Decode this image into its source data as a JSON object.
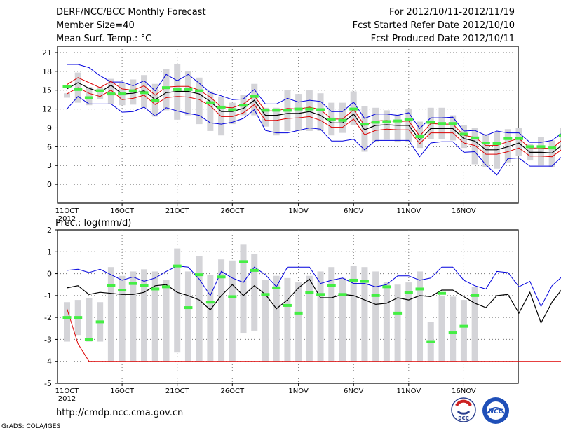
{
  "header": {
    "title": "DERF/NCC/BCC Monthly Forecast",
    "member": "Member Size=40",
    "variable": "Mean Surf. Temp.: °C",
    "period": "For 2012/10/11-2012/11/19",
    "refer": "Fcst Started Refer Date 2012/10/10",
    "produced": "Fcst Produced Date 2012/10/11"
  },
  "footer": {
    "url": "http://cmdp.ncc.cma.gov.cn",
    "grads": "GrADS: COLA/IGES"
  },
  "logos": {
    "bcc": "BCC",
    "ncc": "NCC"
  },
  "colors": {
    "ensemble": "#000000",
    "bounds_outer": "#0000dd",
    "bounds_inner": "#dd0000",
    "observed": "#44ee44",
    "spread": "#d4d4d8"
  },
  "chart_data": [
    {
      "type": "line",
      "title": "Mean Surf. Temp.: °C",
      "xlabel": "",
      "ylabel": "°C",
      "ylim": [
        -3,
        22
      ],
      "yticks": [
        0,
        3,
        6,
        9,
        12,
        15,
        18,
        21
      ],
      "x_tick_labels": [
        "11OCT",
        "16OCT",
        "21OCT",
        "26OCT",
        "1NOV",
        "6NOV",
        "11NOV",
        "16NOV"
      ],
      "x_tick_days": [
        1,
        6,
        11,
        16,
        22,
        27,
        32,
        37
      ],
      "year_label": "2012",
      "grid": true,
      "series": [
        {
          "name": "ensemble mean",
          "values": [
            15.2,
            16.2,
            15.3,
            14.7,
            15.8,
            14.4,
            14.5,
            14.9,
            13.5,
            14.6,
            14.8,
            14.8,
            14.4,
            13.2,
            11.6,
            11.6,
            12.1,
            13.4,
            11.0,
            11.0,
            11.3,
            11.3,
            11.6,
            11.0,
            9.8,
            9.8,
            11.2,
            8.7,
            9.4,
            9.5,
            9.4,
            9.4,
            7.1,
            8.9,
            8.9,
            8.9,
            7.3,
            6.9,
            5.5,
            5.5,
            6.0,
            6.6,
            5.1,
            5.1,
            5.0,
            6.4
          ]
        },
        {
          "name": "upper bound",
          "values": [
            19.1,
            19.1,
            18.6,
            17.3,
            16.3,
            16.3,
            15.7,
            16.5,
            14.9,
            17.5,
            16.5,
            17.5,
            16.1,
            14.6,
            14.1,
            13.5,
            13.6,
            15.1,
            12.8,
            12.8,
            13.7,
            13.1,
            13.4,
            13.2,
            11.6,
            11.6,
            13.1,
            10.5,
            11.2,
            11.2,
            11.0,
            11.4,
            8.9,
            10.6,
            10.6,
            10.7,
            8.5,
            8.6,
            7.8,
            8.5,
            8.2,
            8.2,
            6.7,
            6.7,
            7.0,
            8.3
          ]
        },
        {
          "name": "lower bound",
          "values": [
            12.0,
            14.0,
            12.8,
            12.8,
            12.8,
            11.5,
            11.6,
            12.3,
            10.9,
            12.2,
            11.7,
            11.3,
            11.0,
            9.8,
            9.6,
            9.9,
            10.5,
            11.9,
            8.6,
            8.2,
            8.2,
            8.6,
            9.0,
            8.8,
            6.9,
            6.9,
            7.2,
            5.5,
            7.0,
            7.0,
            7.0,
            7.0,
            4.4,
            6.6,
            6.8,
            6.8,
            5.1,
            5.2,
            3.1,
            1.5,
            4.1,
            4.2,
            2.9,
            2.9,
            2.9,
            4.6
          ]
        },
        {
          "name": "inner upper",
          "values": [
            15.9,
            17.0,
            16.2,
            15.4,
            16.4,
            15.2,
            15.0,
            15.7,
            14.2,
            15.5,
            15.6,
            15.6,
            15.0,
            13.9,
            12.3,
            12.2,
            12.8,
            14.1,
            11.7,
            11.7,
            12.1,
            12.0,
            12.3,
            11.9,
            10.4,
            10.4,
            11.9,
            9.4,
            10.1,
            10.2,
            10.0,
            10.1,
            7.7,
            9.7,
            9.6,
            9.6,
            7.8,
            7.5,
            6.2,
            6.2,
            6.8,
            7.3,
            5.8,
            5.8,
            5.7,
            7.2
          ]
        },
        {
          "name": "inner lower",
          "values": [
            14.4,
            15.4,
            14.5,
            14.0,
            15.0,
            13.5,
            13.7,
            14.2,
            12.7,
            13.8,
            14.0,
            13.9,
            13.5,
            12.5,
            10.8,
            10.8,
            11.4,
            12.7,
            10.2,
            10.2,
            10.5,
            10.6,
            10.8,
            10.2,
            9.1,
            9.1,
            10.4,
            7.9,
            8.6,
            8.8,
            8.7,
            8.7,
            6.5,
            8.2,
            8.2,
            8.2,
            6.6,
            6.2,
            4.8,
            4.8,
            5.2,
            5.8,
            4.5,
            4.5,
            4.4,
            5.7
          ]
        },
        {
          "name": "observed",
          "values": [
            15.6,
            15.1,
            13.8,
            14.9,
            14.4,
            14.4,
            14.9,
            14.6,
            13.4,
            15.4,
            15.1,
            15.1,
            14.9,
            13.0,
            12.3,
            11.9,
            12.6,
            14.0,
            11.8,
            11.8,
            11.8,
            12.0,
            12.0,
            11.9,
            10.4,
            10.2,
            12.0,
            9.6,
            9.9,
            10.0,
            10.1,
            10.3,
            7.6,
            9.9,
            9.7,
            9.7,
            8.0,
            7.4,
            6.6,
            6.5,
            7.3,
            7.3,
            6.0,
            6.0,
            5.8,
            7.8
          ]
        },
        {
          "name": "spread bar top",
          "values": [
            14.5,
            17.8,
            15.5,
            15.5,
            16.8,
            16.1,
            16.7,
            17.4,
            16.0,
            18.4,
            19.2,
            18.0,
            17.0,
            14.8,
            14.0,
            13.0,
            14.3,
            16.0,
            12.2,
            12.2,
            15.0,
            14.4,
            15.0,
            14.5,
            13.0,
            13.0,
            14.8,
            12.5,
            12.2,
            11.8,
            11.1,
            12.0,
            10.0,
            12.2,
            12.2,
            11.0,
            9.5,
            9.0,
            8.0,
            8.3,
            8.8,
            9.0,
            6.5,
            7.6,
            7.0,
            9.0
          ]
        },
        {
          "name": "spread bar bottom",
          "values": [
            13.8,
            13.0,
            12.6,
            13.6,
            12.8,
            12.6,
            12.7,
            12.2,
            10.8,
            11.8,
            10.3,
            11.0,
            9.6,
            8.5,
            7.8,
            9.6,
            11.0,
            11.0,
            9.2,
            7.8,
            8.5,
            8.5,
            8.5,
            8.5,
            7.8,
            8.2,
            9.5,
            5.2,
            6.8,
            7.1,
            6.7,
            6.7,
            5.8,
            7.2,
            7.2,
            7.0,
            5.8,
            3.2,
            2.8,
            2.5,
            3.5,
            4.5,
            3.8,
            3.0,
            2.8,
            5.5
          ]
        }
      ]
    },
    {
      "type": "line",
      "title": "Prec.: log(mm/d)",
      "xlabel": "",
      "ylabel": "log(mm/d)",
      "ylim": [
        -5,
        2
      ],
      "yticks": [
        -5,
        -4,
        -3,
        -2,
        -1,
        0,
        1,
        2
      ],
      "x_tick_labels": [
        "11OCT",
        "16OCT",
        "21OCT",
        "26OCT",
        "1NOV",
        "6NOV",
        "11NOV",
        "16NOV"
      ],
      "x_tick_days": [
        1,
        6,
        11,
        16,
        22,
        27,
        32,
        37
      ],
      "year_label": "2012",
      "grid": true,
      "series": [
        {
          "name": "ensemble mean",
          "values": [
            -0.65,
            -0.55,
            -0.95,
            -0.85,
            -0.9,
            -0.95,
            -0.95,
            -0.85,
            -0.55,
            -0.5,
            -0.85,
            -1.0,
            -1.2,
            -1.65,
            -1.0,
            -0.5,
            -1.0,
            -0.55,
            -0.95,
            -1.6,
            -1.2,
            -0.65,
            -0.25,
            -1.1,
            -1.1,
            -0.95,
            -1.0,
            -1.2,
            -1.4,
            -1.35,
            -1.1,
            -1.2,
            -1.0,
            -1.05,
            -0.75,
            -0.75,
            -1.05,
            -1.35,
            -1.55,
            -1.0,
            -0.95,
            -1.8,
            -0.85,
            -2.25,
            -1.3,
            -0.65
          ]
        },
        {
          "name": "upper bound",
          "values": [
            0.15,
            0.2,
            0.05,
            0.2,
            -0.05,
            -0.3,
            -0.15,
            -0.35,
            -0.2,
            0.1,
            0.35,
            0.3,
            -0.25,
            -1.0,
            0.1,
            -0.2,
            -0.4,
            0.3,
            -0.05,
            -0.6,
            0.3,
            0.3,
            0.3,
            -0.45,
            -0.3,
            -0.2,
            -0.45,
            -0.45,
            -0.6,
            -0.5,
            -0.1,
            -0.1,
            -0.3,
            -0.2,
            0.3,
            0.3,
            -0.3,
            -0.55,
            -0.7,
            0.1,
            0.05,
            -0.6,
            -0.35,
            -1.5,
            -0.55,
            -0.1
          ]
        },
        {
          "name": "inner lower",
          "values": [
            -1.6,
            -3.2,
            -4.0,
            -4.0,
            -4.0,
            -4.0,
            -4.0,
            -4.0,
            -4.0,
            -4.0,
            -4.0,
            -4.0,
            -4.0,
            -4.0,
            -4.0,
            -4.0,
            -4.0,
            -4.0,
            -4.0,
            -4.0,
            -4.0,
            -4.0,
            -4.0,
            -4.0,
            -4.0,
            -4.0,
            -4.0,
            -4.0,
            -4.0,
            -4.0,
            -4.0,
            -4.0,
            -4.0,
            -4.0,
            -4.0,
            -4.0,
            -4.0,
            -4.0,
            -4.0,
            -4.0,
            -4.0,
            -4.0,
            -4.0,
            -4.0,
            -4.0,
            -4.0
          ]
        },
        {
          "name": "observed",
          "values": [
            -2.0,
            -2.0,
            -3.0,
            -2.2,
            -0.55,
            -0.75,
            -0.45,
            -0.55,
            -0.7,
            -0.6,
            0.35,
            -1.55,
            -0.05,
            -1.3,
            -0.15,
            -1.05,
            0.55,
            0.15,
            -0.95,
            -0.65,
            -1.45,
            -1.8,
            -0.85,
            -0.95,
            -0.55,
            -0.95,
            -0.3,
            -0.35,
            -1.0,
            -0.6,
            -1.8,
            -0.85,
            -0.7,
            -3.1,
            -0.9,
            -2.7,
            -2.4,
            -1.0
          ]
        },
        {
          "name": "spread bar top",
          "values": [
            -1.3,
            -1.2,
            -1.1,
            -1.3,
            0.3,
            -0.1,
            0.1,
            0.2,
            0.1,
            -0.3,
            1.15,
            0.1,
            0.8,
            -0.05,
            0.65,
            0.6,
            1.35,
            0.9,
            -0.3,
            -0.1,
            -0.2,
            -0.4,
            -0.1,
            0.1,
            0.3,
            -0.2,
            0.35,
            0.3,
            0.1,
            -0.4,
            -0.5,
            -0.4,
            0.1,
            -2.2,
            -1.0,
            -1.05,
            -1.2,
            -0.6
          ]
        },
        {
          "name": "spread bar bottom",
          "values": [
            -3.1,
            -2.8,
            -3.1,
            -3.1,
            -4.0,
            -4.0,
            -4.0,
            -4.0,
            -4.0,
            -4.0,
            -3.6,
            -4.0,
            -4.0,
            -4.0,
            -4.0,
            -4.0,
            -2.7,
            -2.6,
            -4.0,
            -4.0,
            -4.0,
            -4.0,
            -4.0,
            -4.0,
            -4.0,
            -4.0,
            -4.0,
            -4.0,
            -4.0,
            -4.0,
            -4.0,
            -4.0,
            -4.0,
            -4.0,
            -4.0,
            -4.0,
            -4.0,
            -4.0
          ]
        }
      ]
    }
  ]
}
